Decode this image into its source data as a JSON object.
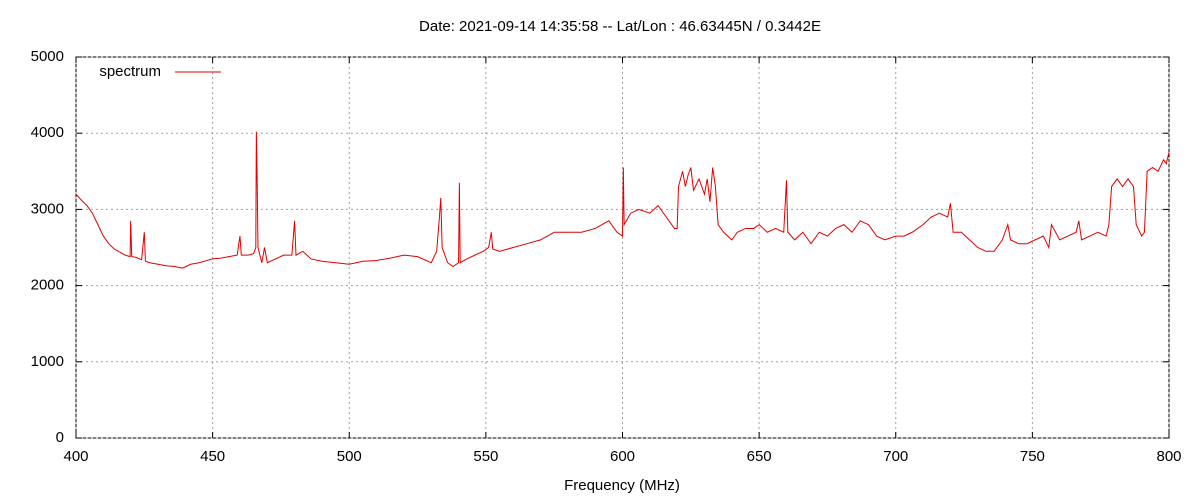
{
  "chart_data": {
    "type": "line",
    "title": "Date: 2021-09-14 14:35:58  --  Lat/Lon : 46.63445N / 0.3442E",
    "x_label": "Frequency (MHz)",
    "xlim": [
      400,
      800
    ],
    "xticks": [
      400,
      450,
      500,
      550,
      600,
      650,
      700,
      750,
      800
    ],
    "ylim": [
      0,
      5000
    ],
    "yticks": [
      0,
      1000,
      2000,
      3000,
      4000,
      5000
    ],
    "grid": true,
    "legend": "top-left",
    "x": [
      400,
      402,
      404,
      406,
      408,
      410,
      412,
      414,
      416,
      418,
      419.8,
      420,
      420.4,
      422,
      424,
      425,
      425.4,
      427,
      430,
      433,
      436,
      439,
      442,
      445,
      448,
      450,
      453,
      456,
      459,
      460,
      460.5,
      463,
      465,
      465.8,
      466,
      466.3,
      466.6,
      468,
      469,
      470,
      473,
      476,
      479,
      480,
      480.5,
      483,
      486,
      490,
      495,
      500,
      505,
      510,
      515,
      520,
      525,
      530,
      532,
      533,
      533.5,
      534,
      536,
      538,
      540,
      540.3,
      540.6,
      543,
      546,
      549,
      551,
      552,
      552.5,
      555,
      560,
      565,
      570,
      575,
      580,
      585,
      590,
      595,
      598,
      600,
      600.3,
      600.6,
      603,
      606,
      610,
      613,
      616,
      619,
      620,
      620.5,
      622,
      623,
      624,
      625,
      626,
      628,
      630,
      631,
      632,
      633,
      634,
      635,
      637,
      640,
      642,
      645,
      648,
      650,
      653,
      656,
      659,
      660,
      660.5,
      663,
      666,
      669,
      672,
      675,
      678,
      681,
      684,
      687,
      690,
      693,
      696,
      700,
      703,
      706,
      710,
      713,
      716,
      719,
      720,
      721,
      724,
      727,
      730,
      733,
      736,
      739,
      741,
      742,
      745,
      748,
      751,
      754,
      756,
      757,
      760,
      763,
      766,
      767,
      768,
      771,
      774,
      777,
      778,
      779,
      781,
      783,
      785,
      787,
      788,
      790,
      791,
      792,
      794,
      796,
      798,
      799,
      800
    ],
    "series": [
      {
        "name": "spectrum",
        "color": "#e00000",
        "values": [
          3200,
          3120,
          3050,
          2950,
          2800,
          2650,
          2550,
          2480,
          2440,
          2400,
          2380,
          2850,
          2380,
          2370,
          2340,
          2700,
          2320,
          2300,
          2280,
          2260,
          2250,
          2230,
          2280,
          2300,
          2330,
          2350,
          2360,
          2380,
          2400,
          2650,
          2400,
          2400,
          2420,
          2500,
          4020,
          3400,
          2500,
          2300,
          2500,
          2300,
          2350,
          2400,
          2400,
          2850,
          2400,
          2450,
          2350,
          2320,
          2300,
          2280,
          2320,
          2330,
          2360,
          2400,
          2380,
          2300,
          2450,
          2900,
          3150,
          2500,
          2300,
          2250,
          2300,
          3350,
          2300,
          2350,
          2400,
          2450,
          2500,
          2700,
          2480,
          2450,
          2500,
          2550,
          2600,
          2700,
          2700,
          2700,
          2750,
          2850,
          2700,
          2650,
          3550,
          2800,
          2950,
          3000,
          2950,
          3050,
          2900,
          2750,
          2750,
          3300,
          3500,
          3300,
          3450,
          3550,
          3250,
          3400,
          3200,
          3400,
          3100,
          3550,
          3300,
          2800,
          2700,
          2600,
          2700,
          2750,
          2750,
          2800,
          2700,
          2750,
          2700,
          3380,
          2700,
          2600,
          2700,
          2550,
          2700,
          2650,
          2750,
          2800,
          2700,
          2850,
          2800,
          2650,
          2600,
          2650,
          2650,
          2700,
          2800,
          2900,
          2950,
          2900,
          3080,
          2700,
          2700,
          2600,
          2500,
          2450,
          2450,
          2600,
          2800,
          2600,
          2550,
          2550,
          2600,
          2650,
          2500,
          2800,
          2600,
          2650,
          2700,
          2850,
          2600,
          2650,
          2700,
          2650,
          2800,
          3300,
          3400,
          3300,
          3400,
          3300,
          2800,
          2650,
          2700,
          3500,
          3550,
          3500,
          3650,
          3600,
          3750
        ]
      }
    ]
  }
}
